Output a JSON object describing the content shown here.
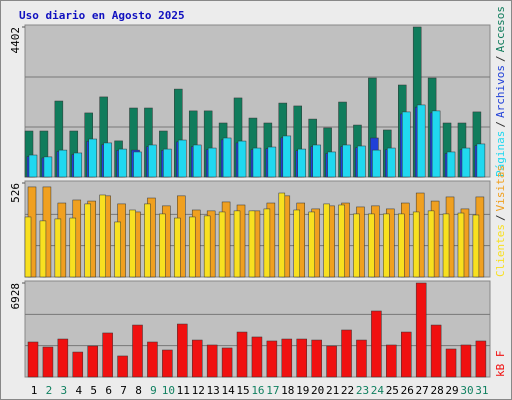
{
  "title": "Uso diario en Agosto 2025",
  "legend_separator": "/",
  "chart_data": [
    {
      "type": "bar",
      "ylim": [
        0,
        4402
      ],
      "yticks": [
        4402
      ],
      "series": [
        {
          "name": "Accesos",
          "color": "#107c5c",
          "values": [
            1350,
            1350,
            2230,
            1350,
            1880,
            2350,
            1060,
            2025,
            2025,
            1350,
            2580,
            1940,
            1940,
            1585,
            2320,
            1730,
            1585,
            2170,
            2085,
            1700,
            1440,
            2200,
            1525,
            2905,
            1380,
            2700,
            4402,
            2905,
            1585,
            1585,
            1910
          ]
        },
        {
          "name": "Archivos",
          "color": "#2040d8",
          "values": [
            600,
            560,
            750,
            660,
            1050,
            950,
            780,
            790,
            890,
            780,
            1030,
            890,
            800,
            1090,
            1000,
            800,
            830,
            1150,
            770,
            890,
            690,
            890,
            860,
            1145,
            800,
            1850,
            2050,
            1880,
            690,
            800,
            920
          ]
        },
        {
          "name": "Páginas",
          "color": "#20d8f0",
          "values": [
            645,
            590,
            790,
            705,
            1115,
            1000,
            820,
            735,
            940,
            820,
            1085,
            940,
            850,
            1145,
            1055,
            850,
            880,
            1205,
            820,
            940,
            735,
            940,
            910,
            790,
            850,
            1910,
            2115,
            1940,
            735,
            850,
            970
          ]
        }
      ]
    },
    {
      "type": "bar",
      "ylim": [
        0,
        526
      ],
      "yticks": [
        526
      ],
      "series": [
        {
          "name": "Visitas",
          "color": "#f0a020",
          "values": [
            504,
            504,
            414,
            431,
            425,
            454,
            409,
            364,
            442,
            398,
            454,
            375,
            370,
            420,
            403,
            370,
            414,
            454,
            414,
            381,
            398,
            414,
            392,
            398,
            381,
            414,
            470,
            425,
            448,
            381,
            448
          ]
        },
        {
          "name": "Clientes",
          "color": "#f8e020",
          "values": [
            336,
            314,
            325,
            330,
            409,
            459,
            308,
            375,
            409,
            353,
            330,
            336,
            342,
            364,
            370,
            370,
            381,
            470,
            375,
            364,
            409,
            403,
            353,
            353,
            353,
            353,
            364,
            370,
            353,
            358,
            347
          ]
        }
      ]
    },
    {
      "type": "bar",
      "ylim": [
        0,
        6928
      ],
      "yticks": [
        6928
      ],
      "categories": [
        "1",
        "2",
        "3",
        "4",
        "5",
        "6",
        "7",
        "8",
        "9",
        "10",
        "11",
        "12",
        "13",
        "14",
        "15",
        "16",
        "17",
        "18",
        "19",
        "20",
        "21",
        "22",
        "23",
        "24",
        "25",
        "26",
        "27",
        "28",
        "29",
        "30",
        "31"
      ],
      "category_colors": [
        "#000",
        "#108060",
        "#108060",
        "#000",
        "#000",
        "#000",
        "#000",
        "#000",
        "#108060",
        "#108060",
        "#000",
        "#000",
        "#000",
        "#000",
        "#000",
        "#108060",
        "#108060",
        "#000",
        "#000",
        "#000",
        "#000",
        "#000",
        "#108060",
        "#108060",
        "#000",
        "#000",
        "#000",
        "#000",
        "#000",
        "#108060",
        "#108060"
      ],
      "series": [
        {
          "name": "kB F",
          "color": "#f01010",
          "values": [
            2580,
            2210,
            2800,
            1840,
            2285,
            3245,
            1550,
            3830,
            2580,
            1990,
            3905,
            2725,
            2360,
            2140,
            3315,
            2950,
            2655,
            2800,
            2800,
            2725,
            2285,
            3465,
            2725,
            4865,
            2360,
            3315,
            6928,
            3830,
            2065,
            2360,
            2655
          ]
        }
      ]
    }
  ]
}
